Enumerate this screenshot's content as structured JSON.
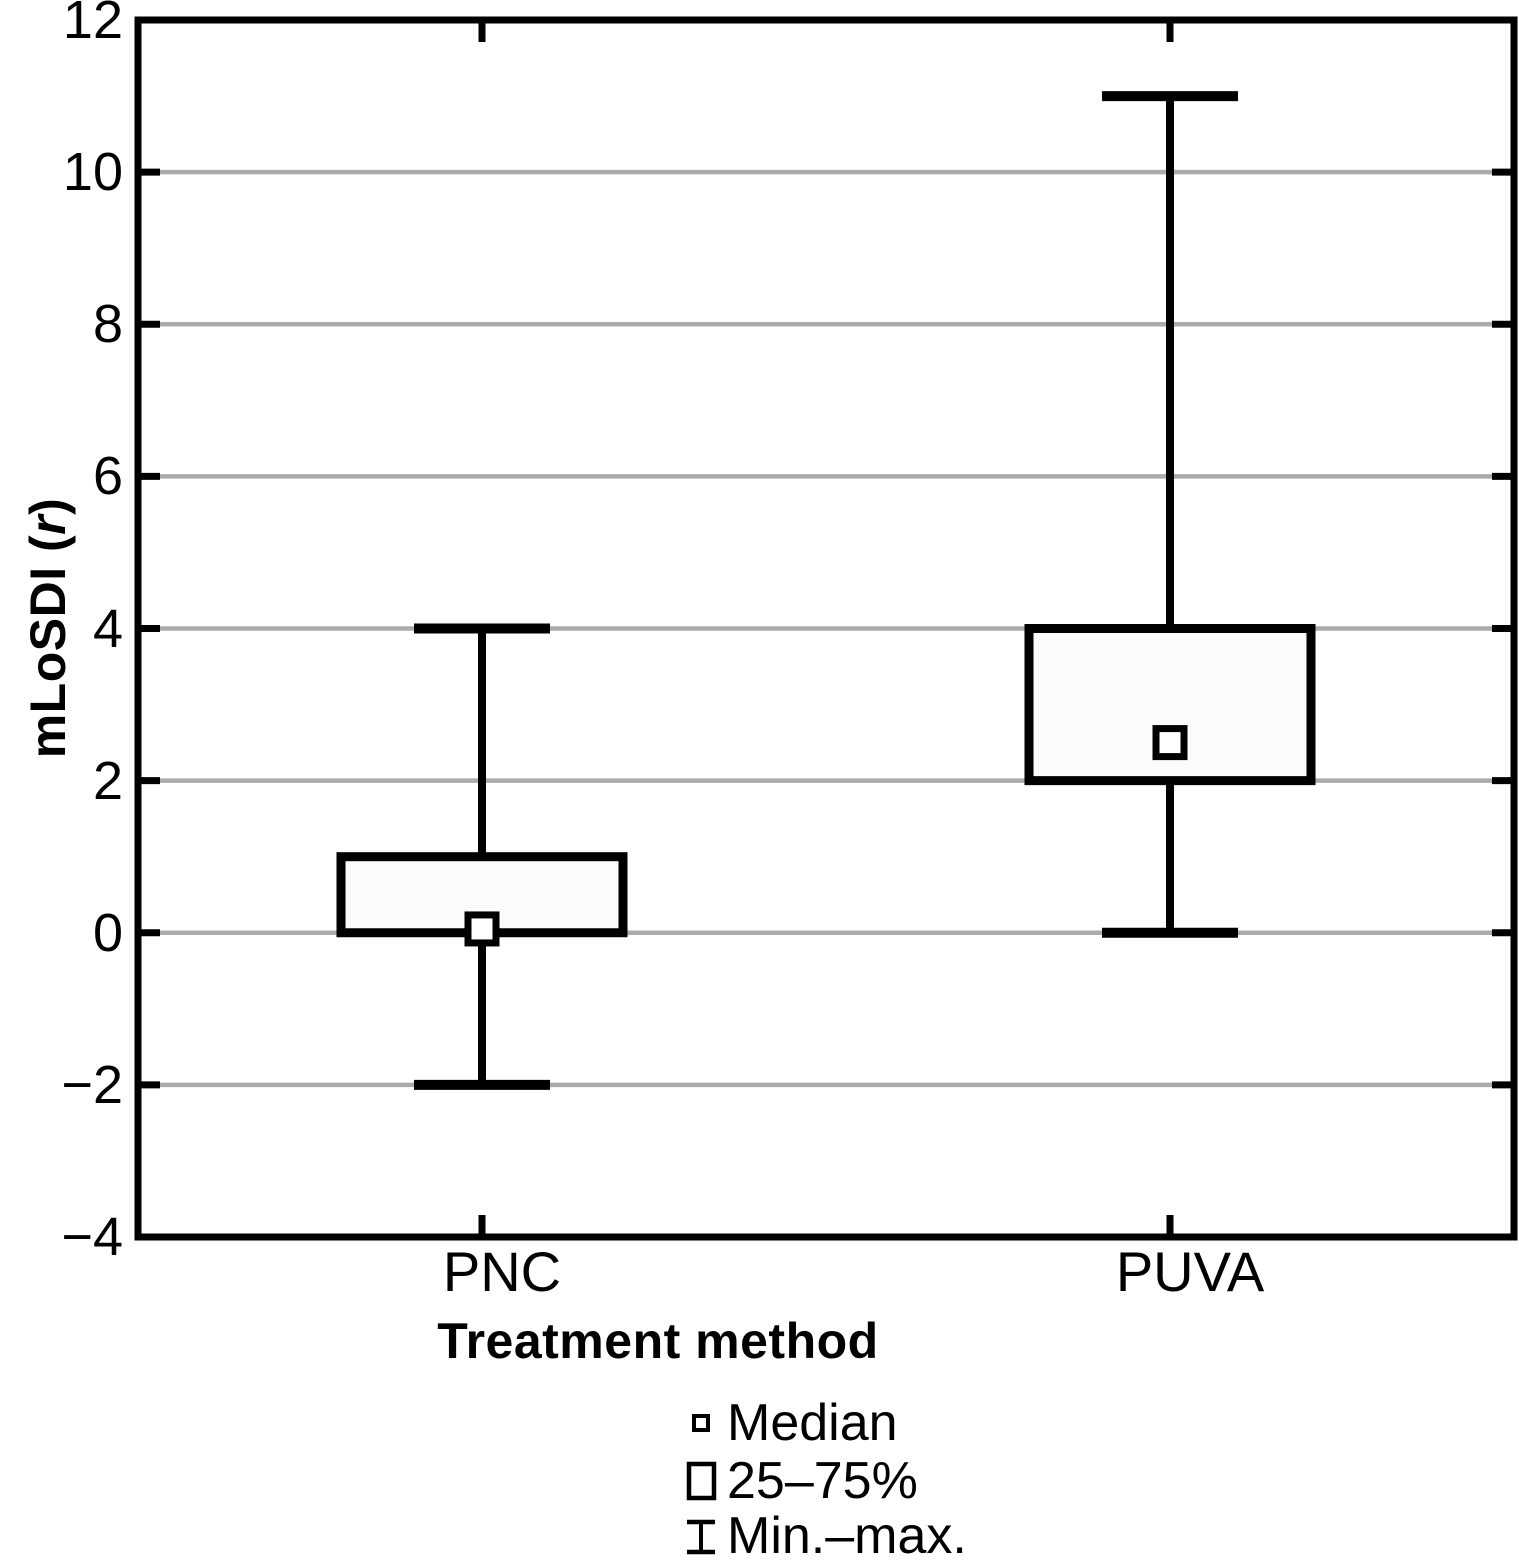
{
  "chart_data": {
    "type": "boxplot",
    "title": "",
    "xlabel": "Treatment method",
    "ylabel": "mLoSDI (r)",
    "ylabel_parts": {
      "prefix": "mLoSDI (",
      "italic": "r",
      "suffix": ")"
    },
    "categories": [
      "PNC",
      "PUVA"
    ],
    "series": [
      {
        "name": "PNC",
        "min": -2,
        "q1": 0,
        "median": 0.05,
        "q3": 1,
        "max": 4
      },
      {
        "name": "PUVA",
        "min": 0,
        "q1": 2,
        "median": 2.5,
        "q3": 4,
        "max": 11
      }
    ],
    "ylim": [
      -4,
      12
    ],
    "yticks": [
      -4,
      -2,
      0,
      2,
      4,
      6,
      8,
      10,
      12
    ],
    "ytick_labels": [
      "−4",
      "−2",
      "0",
      "2",
      "4",
      "6",
      "8",
      "10",
      "12"
    ],
    "grid": true,
    "grid_orientation": "horizontal",
    "legend_position": "bottom",
    "legend": [
      {
        "symbol": "median-marker",
        "label": "Median"
      },
      {
        "symbol": "iqr-box",
        "label": "25–75%"
      },
      {
        "symbol": "min-max-whisker",
        "label": "Min.–max."
      }
    ],
    "colors": {
      "stroke": "#000000",
      "box_fill": "#fbfbfb",
      "median_fill": "#ffffff",
      "gridline": "#ababab",
      "background": "#ffffff"
    }
  }
}
